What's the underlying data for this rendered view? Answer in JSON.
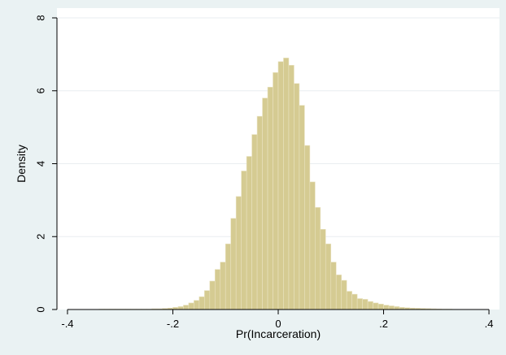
{
  "chart_data": {
    "type": "bar",
    "title": "",
    "xlabel": "Pr(Incarceration)",
    "ylabel": "Density",
    "xlim": [
      -0.42,
      0.42
    ],
    "ylim": [
      0,
      8
    ],
    "x_ticks": [
      -0.4,
      -0.2,
      0,
      0.2,
      0.4
    ],
    "x_tick_labels": [
      "-.4",
      "-.2",
      "0",
      ".2",
      ".4"
    ],
    "y_ticks": [
      0,
      2,
      4,
      6,
      8
    ],
    "y_tick_labels": [
      "0",
      "2",
      "4",
      "6",
      "8"
    ],
    "grid": "horizontal",
    "legend": "none",
    "bin_width": 0.01,
    "bin_starts": [
      -0.34,
      -0.33,
      -0.32,
      -0.31,
      -0.3,
      -0.29,
      -0.28,
      -0.27,
      -0.26,
      -0.25,
      -0.24,
      -0.23,
      -0.22,
      -0.21,
      -0.2,
      -0.19,
      -0.18,
      -0.17,
      -0.16,
      -0.15,
      -0.14,
      -0.13,
      -0.12,
      -0.11,
      -0.1,
      -0.09,
      -0.08,
      -0.07,
      -0.06,
      -0.05,
      -0.04,
      -0.03,
      -0.02,
      -0.01,
      0.0,
      0.01,
      0.02,
      0.03,
      0.04,
      0.05,
      0.06,
      0.07,
      0.08,
      0.09,
      0.1,
      0.11,
      0.12,
      0.13,
      0.14,
      0.15,
      0.16,
      0.17,
      0.18,
      0.19,
      0.2,
      0.21,
      0.22,
      0.23,
      0.24,
      0.25,
      0.26,
      0.27,
      0.28,
      0.29,
      0.3,
      0.31,
      0.32,
      0.33
    ],
    "values": [
      0.01,
      0.01,
      0.01,
      0.01,
      0.01,
      0.01,
      0.01,
      0.01,
      0.01,
      0.01,
      0.02,
      0.02,
      0.03,
      0.04,
      0.06,
      0.08,
      0.12,
      0.18,
      0.25,
      0.35,
      0.52,
      0.78,
      1.1,
      1.3,
      1.8,
      2.5,
      3.1,
      3.8,
      4.2,
      4.8,
      5.3,
      5.8,
      6.1,
      6.5,
      6.8,
      6.9,
      6.7,
      6.2,
      5.6,
      4.5,
      3.5,
      2.8,
      2.2,
      1.8,
      1.3,
      0.95,
      0.8,
      0.5,
      0.42,
      0.3,
      0.28,
      0.22,
      0.18,
      0.15,
      0.12,
      0.1,
      0.08,
      0.06,
      0.05,
      0.04,
      0.035,
      0.03,
      0.025,
      0.02,
      0.015,
      0.01,
      0.01,
      0.005
    ],
    "colors": {
      "bar_fill": "#d5cb92",
      "bar_stroke": "#e9e2c0",
      "plot_bg": "#ffffff",
      "outer_bg": "#eaf2f3",
      "grid": "#e9eef0",
      "axis": "#000000"
    }
  }
}
